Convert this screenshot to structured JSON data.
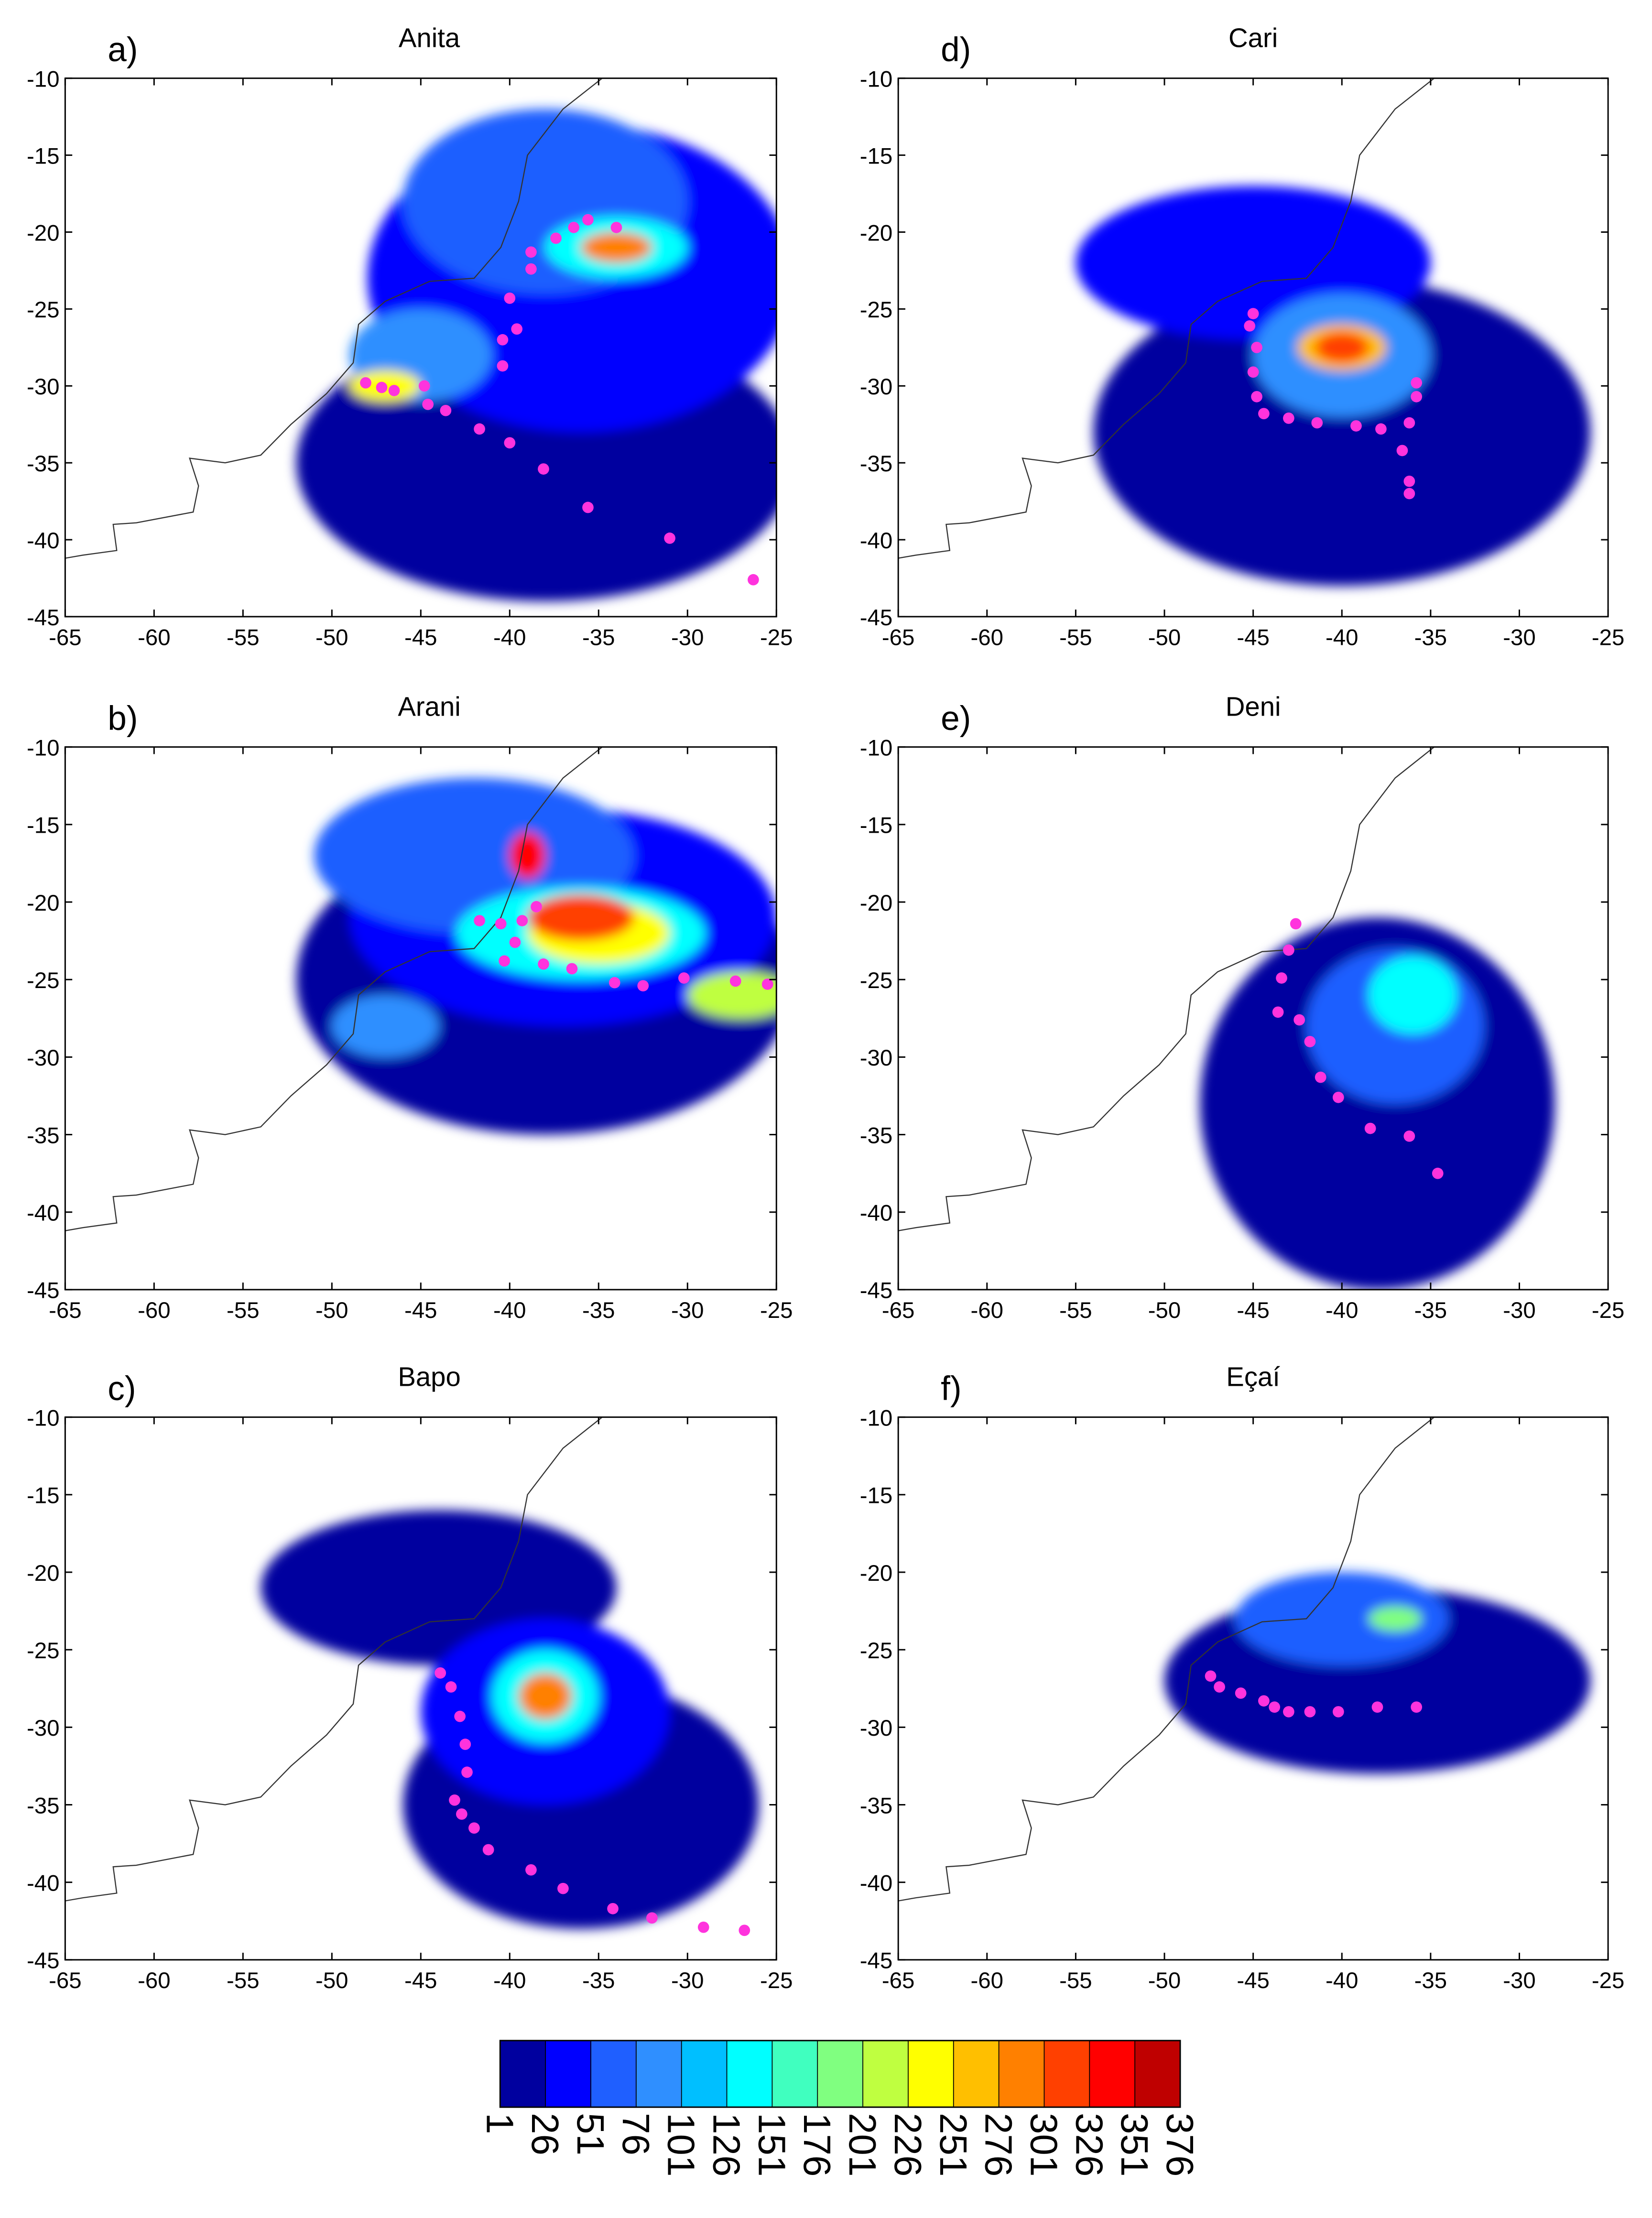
{
  "chart_data": [
    {
      "type": "map",
      "label": "a)",
      "title": "Anita",
      "xlim": [
        -65,
        -25
      ],
      "ylim": [
        -45,
        -10
      ],
      "xticks": [
        -65,
        -60,
        -55,
        -50,
        -45,
        -40,
        -35,
        -30,
        -25
      ],
      "yticks": [
        -10,
        -15,
        -20,
        -25,
        -30,
        -35,
        -40,
        -45
      ],
      "color": "#ff33dd",
      "x": [
        -48.1,
        -47.2,
        -46.5,
        -44.8,
        -44.6,
        -43.6,
        -41.7,
        -40,
        -38.1,
        -35.6,
        -31,
        -26.3,
        -40.4,
        -40.4,
        -39.6,
        -40,
        -38.8,
        -38.8,
        -37.4,
        -36.4,
        -35.6,
        -34
      ],
      "y": [
        -29.8,
        -30.1,
        -30.3,
        -30,
        -31.2,
        -31.6,
        -32.8,
        -33.7,
        -35.4,
        -37.9,
        -39.9,
        -42.6,
        -28.7,
        -27,
        -26.3,
        -24.3,
        -22.4,
        -21.3,
        -20.4,
        -19.7,
        -19.2,
        -19.7
      ]
    },
    {
      "type": "map",
      "label": "b)",
      "title": "Arani",
      "xlim": [
        -65,
        -25
      ],
      "ylim": [
        -45,
        -10
      ],
      "xticks": [
        -65,
        -60,
        -55,
        -50,
        -45,
        -40,
        -35,
        -30,
        -25
      ],
      "yticks": [
        -10,
        -15,
        -20,
        -25,
        -30,
        -35,
        -40,
        -45
      ],
      "color": "#ff33dd",
      "x": [
        -41.7,
        -40.5,
        -39.3,
        -38.5,
        -39.7,
        -40.3,
        -38.1,
        -36.5,
        -34.1,
        -32.5,
        -30.2,
        -27.3,
        -25.5
      ],
      "y": [
        -21.2,
        -21.4,
        -21.2,
        -20.3,
        -22.6,
        -23.8,
        -24,
        -24.3,
        -25.2,
        -25.4,
        -24.9,
        -25.1,
        -25.3
      ]
    },
    {
      "type": "map",
      "label": "c)",
      "title": "Bapo",
      "xlim": [
        -65,
        -25
      ],
      "ylim": [
        -45,
        -10
      ],
      "xticks": [
        -65,
        -60,
        -55,
        -50,
        -45,
        -40,
        -35,
        -30,
        -25
      ],
      "yticks": [
        -10,
        -15,
        -20,
        -25,
        -30,
        -35,
        -40,
        -45
      ],
      "color": "#ff33dd",
      "x": [
        -43.9,
        -43.3,
        -42.8,
        -42.5,
        -42.4,
        -43.1,
        -42.7,
        -42,
        -41.2,
        -38.8,
        -37,
        -34.2,
        -32,
        -29.1,
        -26.8
      ],
      "y": [
        -26.5,
        -27.4,
        -29.3,
        -31.1,
        -32.9,
        -34.7,
        -35.6,
        -36.5,
        -37.9,
        -39.2,
        -40.4,
        -41.7,
        -42.3,
        -42.9,
        -43.1
      ]
    },
    {
      "type": "map",
      "label": "d)",
      "title": "Cari",
      "xlim": [
        -65,
        -25
      ],
      "ylim": [
        -45,
        -10
      ],
      "xticks": [
        -65,
        -60,
        -55,
        -50,
        -45,
        -40,
        -35,
        -30,
        -25
      ],
      "yticks": [
        -10,
        -15,
        -20,
        -25,
        -30,
        -35,
        -40,
        -45
      ],
      "color": "#ff33dd",
      "x": [
        -45,
        -45.2,
        -44.8,
        -45,
        -44.8,
        -44.4,
        -43,
        -41.4,
        -39.2,
        -37.8,
        -36.2,
        -35.8,
        -35.8,
        -36.6,
        -36.2,
        -36.2
      ],
      "y": [
        -25.3,
        -26.1,
        -27.5,
        -29.1,
        -30.7,
        -31.8,
        -32.1,
        -32.4,
        -32.6,
        -32.8,
        -32.4,
        -30.7,
        -29.8,
        -34.2,
        -36.2,
        -37
      ]
    },
    {
      "type": "map",
      "label": "e)",
      "title": "Deni",
      "xlim": [
        -65,
        -25
      ],
      "ylim": [
        -45,
        -10
      ],
      "xticks": [
        -65,
        -60,
        -55,
        -50,
        -45,
        -40,
        -35,
        -30,
        -25
      ],
      "yticks": [
        -10,
        -15,
        -20,
        -25,
        -30,
        -35,
        -40,
        -45
      ],
      "color": "#ff33dd",
      "x": [
        -42.6,
        -43,
        -43.4,
        -43.6,
        -42.4,
        -41.8,
        -41.2,
        -40.2,
        -38.4,
        -36.2,
        -34.6
      ],
      "y": [
        -21.4,
        -23.1,
        -24.9,
        -27.1,
        -27.6,
        -29,
        -31.3,
        -32.6,
        -34.6,
        -35.1,
        -37.5
      ]
    },
    {
      "type": "map",
      "label": "f)",
      "title": "Eçaí",
      "xlim": [
        -65,
        -25
      ],
      "ylim": [
        -45,
        -10
      ],
      "xticks": [
        -65,
        -60,
        -55,
        -50,
        -45,
        -40,
        -35,
        -30,
        -25
      ],
      "yticks": [
        -10,
        -15,
        -20,
        -25,
        -30,
        -35,
        -40,
        -45
      ],
      "color": "#ff33dd",
      "x": [
        -47.4,
        -46.9,
        -45.7,
        -44.4,
        -43.8,
        -43,
        -41.8,
        -40.2,
        -38,
        -35.8
      ],
      "y": [
        -26.7,
        -27.4,
        -27.8,
        -28.3,
        -28.7,
        -29,
        -29,
        -29,
        -28.7,
        -28.7
      ]
    },
    {
      "type": "colorbar",
      "lim": [
        1,
        376
      ],
      "ticks": [
        1,
        26,
        51,
        76,
        101,
        126,
        151,
        176,
        201,
        226,
        251,
        276,
        301,
        326,
        351,
        376
      ],
      "colors": [
        "#00009f",
        "#0000ff",
        "#1f5fff",
        "#2f8fff",
        "#00bfff",
        "#00ffff",
        "#40ffbf",
        "#80ff80",
        "#bfff40",
        "#ffff00",
        "#ffbf00",
        "#ff8000",
        "#ff4000",
        "#ff0000",
        "#bf0000"
      ]
    }
  ]
}
